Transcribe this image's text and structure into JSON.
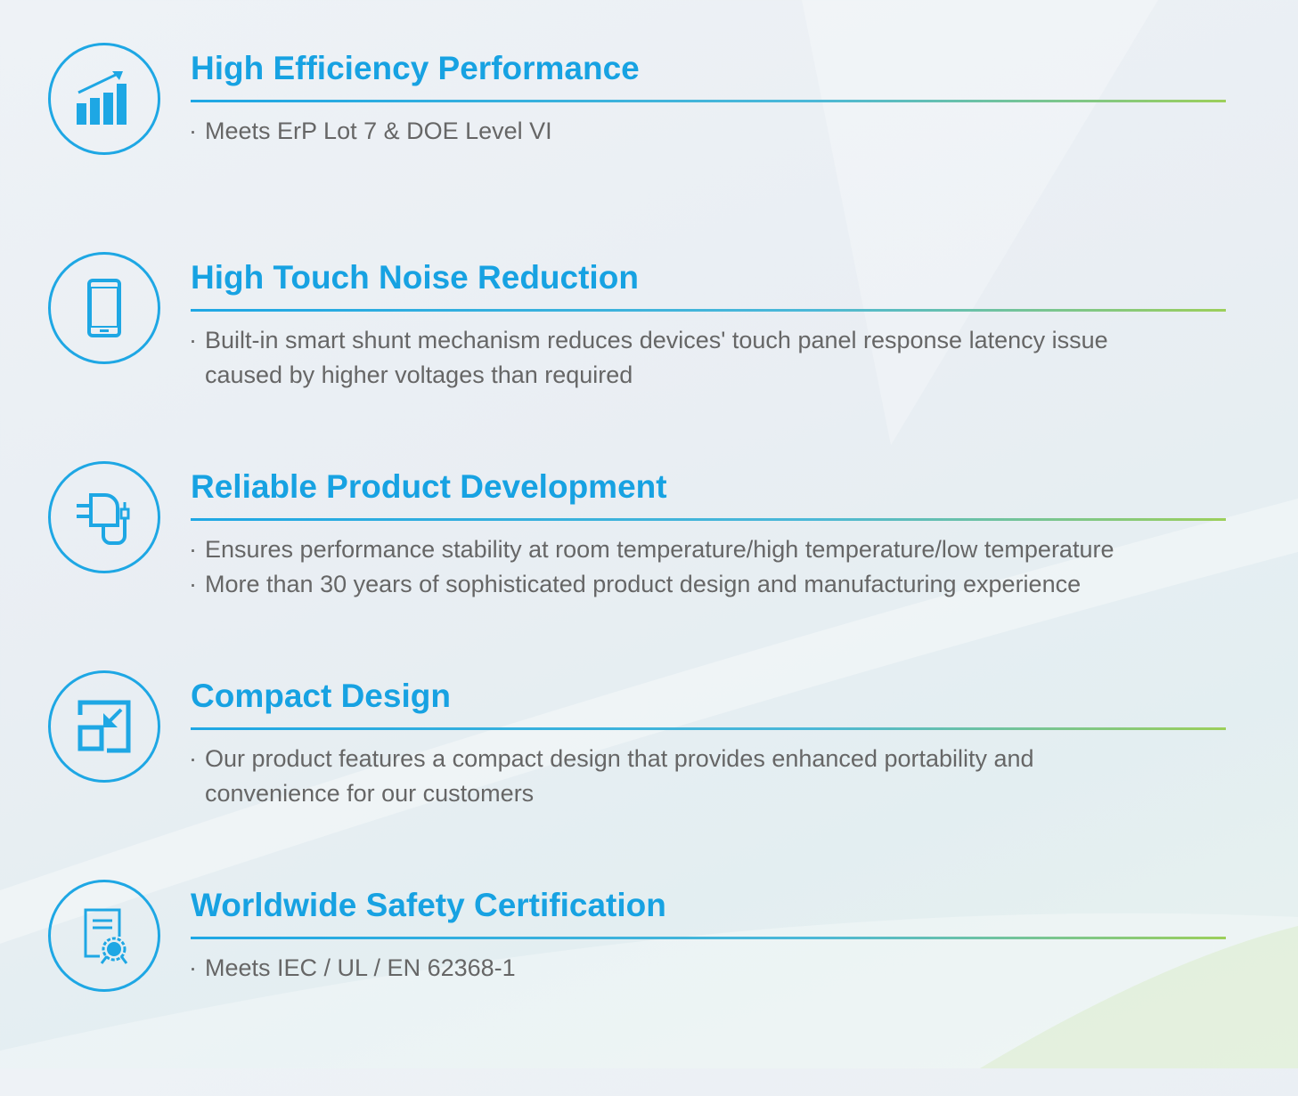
{
  "accent_color": "#17a2e2",
  "sections": [
    {
      "icon": "bar-chart-growth-icon",
      "title": "High Efficiency Performance",
      "bullets": [
        [
          "Meets ErP Lot 7 & DOE Level VI"
        ]
      ]
    },
    {
      "icon": "smartphone-icon",
      "title": "High Touch Noise Reduction",
      "bullets": [
        [
          "Built-in smart shunt mechanism reduces devices' touch panel response latency issue",
          "caused by higher voltages than required"
        ]
      ]
    },
    {
      "icon": "charger-adapter-icon",
      "title": "Reliable Product Development",
      "bullets": [
        [
          "Ensures performance stability at room temperature/high temperature/low temperature"
        ],
        [
          "More than 30 years of sophisticated product  design and manufacturing experience"
        ]
      ]
    },
    {
      "icon": "compact-resize-icon",
      "title": "Compact Design",
      "bullets": [
        [
          "Our product features a compact design that provides enhanced portability and",
          "convenience for our customers"
        ]
      ]
    },
    {
      "icon": "certificate-icon",
      "title": "Worldwide Safety Certification",
      "bullets": [
        [
          "Meets IEC / UL / EN 62368-1"
        ]
      ]
    }
  ]
}
